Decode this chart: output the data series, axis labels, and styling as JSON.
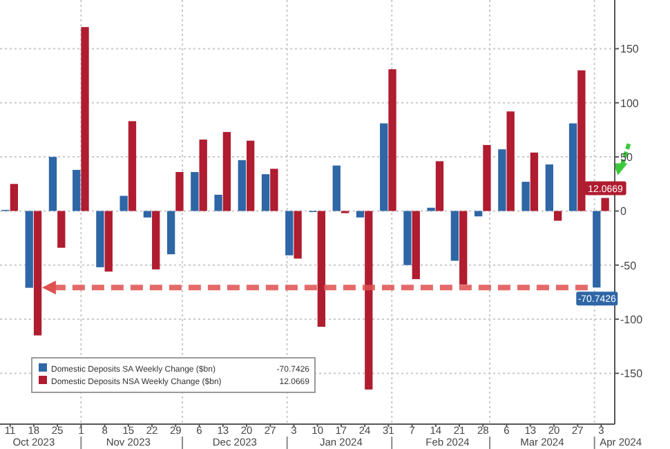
{
  "chart_data": {
    "type": "bar",
    "x": [
      "2023-10-11",
      "2023-10-18",
      "2023-10-25",
      "2023-11-01",
      "2023-11-08",
      "2023-11-15",
      "2023-11-22",
      "2023-11-29",
      "2023-12-06",
      "2023-12-13",
      "2023-12-20",
      "2023-12-27",
      "2024-01-03",
      "2024-01-10",
      "2024-01-17",
      "2024-01-24",
      "2024-01-31",
      "2024-02-07",
      "2024-02-14",
      "2024-02-21",
      "2024-02-28",
      "2024-03-06",
      "2024-03-13",
      "2024-03-20",
      "2024-03-27",
      "2024-04-03"
    ],
    "xlim": [
      "2023-10-08",
      "2024-04-07"
    ],
    "xticks": [
      {
        "value": "2023-10-11",
        "label": "11"
      },
      {
        "value": "2023-10-18",
        "label": "18"
      },
      {
        "value": "2023-10-25",
        "label": "25"
      },
      {
        "value": "2023-11-01",
        "label": "1"
      },
      {
        "value": "2023-11-08",
        "label": "8"
      },
      {
        "value": "2023-11-15",
        "label": "15"
      },
      {
        "value": "2023-11-22",
        "label": "22"
      },
      {
        "value": "2023-11-29",
        "label": "29"
      },
      {
        "value": "2023-12-06",
        "label": "6"
      },
      {
        "value": "2023-12-13",
        "label": "13"
      },
      {
        "value": "2023-12-20",
        "label": "20"
      },
      {
        "value": "2023-12-27",
        "label": "27"
      },
      {
        "value": "2024-01-03",
        "label": "3"
      },
      {
        "value": "2024-01-10",
        "label": "10"
      },
      {
        "value": "2024-01-17",
        "label": "17"
      },
      {
        "value": "2024-01-24",
        "label": "24"
      },
      {
        "value": "2024-01-31",
        "label": "31"
      },
      {
        "value": "2024-02-07",
        "label": "7"
      },
      {
        "value": "2024-02-14",
        "label": "14"
      },
      {
        "value": "2024-02-21",
        "label": "21"
      },
      {
        "value": "2024-02-28",
        "label": "28"
      },
      {
        "value": "2024-03-06",
        "label": "6"
      },
      {
        "value": "2024-03-13",
        "label": "13"
      },
      {
        "value": "2024-03-20",
        "label": "20"
      },
      {
        "value": "2024-03-27",
        "label": "27"
      },
      {
        "value": "2024-04-03",
        "label": "3"
      }
    ],
    "ylim": [
      -197,
      195
    ],
    "yticks": [
      -150,
      -100,
      -50,
      0,
      50,
      100,
      150
    ],
    "grid": true,
    "legend": "bottom left",
    "series": [
      {
        "name": "Domestic Deposits SA Weekly Change ($bn)",
        "color": "#2e66a6",
        "values": [
          1,
          -71,
          50,
          38,
          -52,
          14,
          -6,
          -40,
          36,
          15,
          47,
          34,
          -41,
          -1,
          42,
          -6,
          81,
          -50,
          3,
          -46,
          -5,
          57,
          27,
          43,
          81,
          -70.7426
        ],
        "value_labels": [
          null,
          null,
          null,
          null,
          null,
          null,
          null,
          null,
          null,
          null,
          null,
          null,
          null,
          null,
          null,
          null,
          null,
          null,
          null,
          null,
          null,
          null,
          null,
          null,
          null,
          "-70.7426"
        ]
      },
      {
        "name": "Domestic Deposits NSA Weekly Change ($bn)",
        "color": "#b01c30",
        "values": [
          25,
          -115,
          -34,
          170,
          -56,
          83,
          -54,
          36,
          66,
          73,
          65,
          39,
          -44,
          -107,
          -2,
          -165,
          131,
          -63,
          46,
          -68,
          61,
          92,
          54,
          -9,
          130,
          12.0669
        ],
        "value_labels": [
          null,
          null,
          null,
          null,
          null,
          null,
          null,
          null,
          null,
          null,
          null,
          null,
          null,
          null,
          null,
          null,
          null,
          null,
          null,
          null,
          null,
          null,
          null,
          null,
          null,
          "12.0669"
        ]
      }
    ],
    "ref_lines": [
      {
        "axis": "y",
        "value": -70.7426,
        "color": "#e0504f",
        "line_style": "dashed"
      }
    ],
    "annotations": [
      "Oct 2023",
      "Nov 2023",
      "Dec 2023",
      "Jan 2024",
      "Feb 2024",
      "Mar 2024",
      "Apr 2024"
    ]
  }
}
